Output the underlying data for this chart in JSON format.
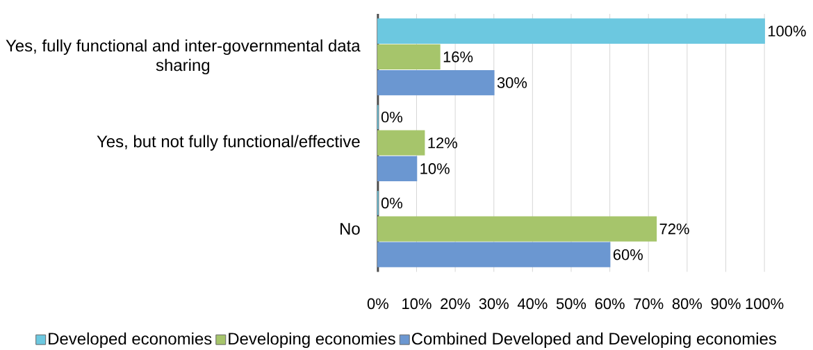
{
  "chart_data": {
    "type": "bar",
    "orientation": "horizontal",
    "categories": [
      "Yes, fully functional and inter-governmental data sharing",
      "Yes, but not fully functional/effective",
      "No"
    ],
    "series": [
      {
        "name": "Developed economies",
        "color": "#6cc8e0",
        "values": [
          100,
          0,
          0
        ],
        "value_labels": [
          "100%",
          "0%",
          "0%"
        ]
      },
      {
        "name": "Developing economies",
        "color": "#a6c56b",
        "values": [
          16,
          12,
          72
        ],
        "value_labels": [
          "16%",
          "12%",
          "72%"
        ]
      },
      {
        "name": "Combined Developed and Developing economies",
        "color": "#6b97d1",
        "values": [
          30,
          10,
          60
        ],
        "value_labels": [
          "30%",
          "10%",
          "60%"
        ]
      }
    ],
    "xlim": [
      0,
      100
    ],
    "xticks": [
      {
        "value": 0,
        "label": "0%"
      },
      {
        "value": 10,
        "label": "10%"
      },
      {
        "value": 20,
        "label": "20%"
      },
      {
        "value": 30,
        "label": "30%"
      },
      {
        "value": 40,
        "label": "40%"
      },
      {
        "value": 50,
        "label": "50%"
      },
      {
        "value": 60,
        "label": "60%"
      },
      {
        "value": 70,
        "label": "70%"
      },
      {
        "value": 80,
        "label": "80%"
      },
      {
        "value": 90,
        "label": "90%"
      },
      {
        "value": 100,
        "label": "100%"
      }
    ],
    "grid": "x",
    "legend": "bottom"
  }
}
